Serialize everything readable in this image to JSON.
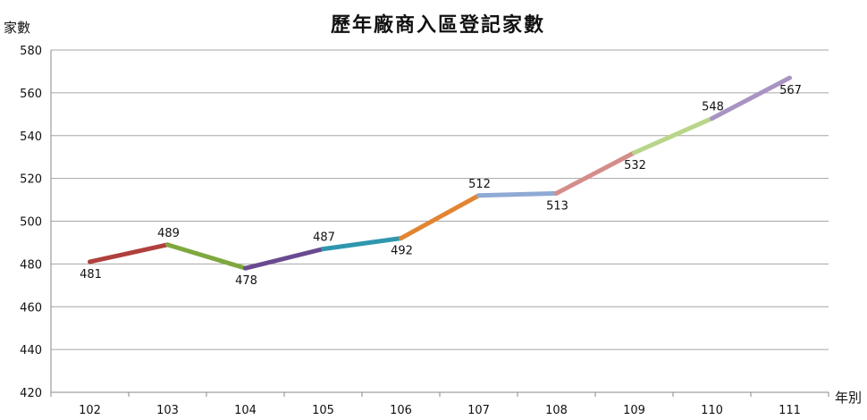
{
  "chart_data": {
    "type": "line",
    "title": "歷年廠商入區登記家數",
    "xlabel": "年別",
    "ylabel": "家數",
    "categories": [
      "102",
      "103",
      "104",
      "105",
      "106",
      "107",
      "108",
      "109",
      "110",
      "111"
    ],
    "values": [
      481,
      489,
      478,
      487,
      492,
      512,
      513,
      532,
      548,
      567
    ],
    "ylim": [
      420,
      580
    ],
    "ytick_step": 20,
    "grid": true,
    "legend": "none",
    "segment_colors": [
      "#b0403d",
      "#7ea83f",
      "#6a4a8f",
      "#2f97ad",
      "#e28432",
      "#8faad4",
      "#d48d8b",
      "#b9d58a",
      "#a894c2"
    ],
    "label_positions": [
      "below",
      "above",
      "below",
      "above",
      "below",
      "above",
      "below",
      "below",
      "above",
      "below"
    ]
  }
}
